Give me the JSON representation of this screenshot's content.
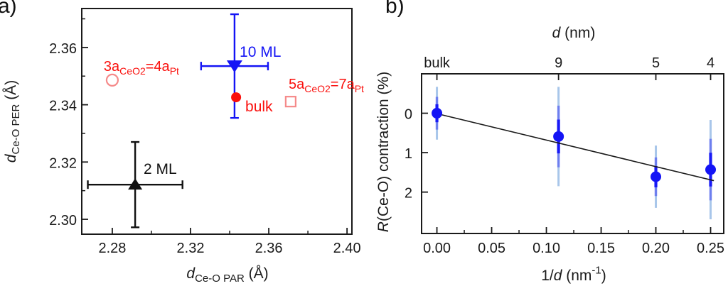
{
  "figure": {
    "background": "#ffffff",
    "panels": {
      "a": {
        "label": "a)"
      },
      "b": {
        "label": "b)"
      }
    }
  },
  "chart_data": [
    {
      "id": "a",
      "type": "scatter",
      "xlabel_rich": [
        {
          "t": "d",
          "i": true
        },
        {
          "t": "Ce-O PAR",
          "sub": true
        },
        {
          "t": " (Å)"
        }
      ],
      "ylabel_rich": [
        {
          "t": "d",
          "i": true
        },
        {
          "t": "Ce-O PER",
          "sub": true
        },
        {
          "t": " (Å)"
        }
      ],
      "xlim": [
        2.2644,
        2.4025
      ],
      "ylim": [
        2.2948,
        2.3736
      ],
      "y_inverted": false,
      "xticks": {
        "major": [
          2.28,
          2.32,
          2.36,
          2.4
        ],
        "labels": [
          "2.28",
          "2.32",
          "2.36",
          "2.40"
        ],
        "minor": [
          2.3,
          2.34,
          2.38
        ]
      },
      "yticks": {
        "major": [
          2.3,
          2.32,
          2.34,
          2.36
        ],
        "labels": [
          "2.30",
          "2.32",
          "2.34",
          "2.36"
        ],
        "minor": [
          2.31,
          2.33,
          2.35,
          2.37
        ]
      },
      "axis_color": "#1a1a1a",
      "series": [
        {
          "name": "3a-ceo2-4a-pt",
          "marker": "open-circle",
          "color": "#f58a8a",
          "x": 2.28,
          "y": 2.3486,
          "annotation": {
            "segments": [
              {
                "t": "3a"
              },
              {
                "t": "CeO2",
                "sub": true
              },
              {
                "t": "=4a"
              },
              {
                "t": "Pt",
                "sub": true
              }
            ],
            "color": "#fa100d",
            "x": 2.2949,
            "y": 2.3518,
            "anchor": "middle",
            "size": 20
          }
        },
        {
          "name": "10-ml",
          "marker": "triangle-down",
          "color": "#1414f5",
          "x": 2.3425,
          "y": 2.3535,
          "xerr": 0.0171,
          "yerr": 0.0181,
          "annotation": {
            "segments": [
              {
                "t": "10 ML"
              }
            ],
            "color": "#1414f5",
            "x": 2.3451,
            "y": 2.3568,
            "anchor": "start",
            "size": 21
          }
        },
        {
          "name": "bulk",
          "marker": "circle",
          "color": "#fa100d",
          "x": 2.3433,
          "y": 2.3426,
          "annotation": {
            "segments": [
              {
                "t": "bulk"
              }
            ],
            "color": "#fa100d",
            "x": 2.348,
            "y": 2.3377,
            "anchor": "start",
            "size": 21
          }
        },
        {
          "name": "5a-ceo2-7a-pt",
          "marker": "open-square",
          "color": "#f58a8a",
          "x": 2.3712,
          "y": 2.3411,
          "annotation": {
            "segments": [
              {
                "t": "5a"
              },
              {
                "t": "CeO2",
                "sub": true
              },
              {
                "t": "=7a"
              },
              {
                "t": "Pt",
                "sub": true
              }
            ],
            "color": "#fa100d",
            "x": 2.3894,
            "y": 2.3456,
            "anchor": "middle",
            "size": 20
          }
        },
        {
          "name": "2-ml",
          "marker": "triangle-up",
          "color": "#111111",
          "x": 2.2917,
          "y": 2.3121,
          "xerr": 0.0242,
          "yerr": 0.0149,
          "annotation": {
            "segments": [
              {
                "t": "2 ML"
              }
            ],
            "color": "#111111",
            "x": 2.296,
            "y": 2.3159,
            "anchor": "start",
            "size": 21
          }
        }
      ]
    },
    {
      "id": "b",
      "type": "scatter",
      "xlabel_rich": [
        {
          "t": "1/"
        },
        {
          "t": "d",
          "i": true
        },
        {
          "t": " (nm"
        },
        {
          "t": "-1",
          "sup": true
        },
        {
          "t": ")"
        }
      ],
      "ylabel_rich": [
        {
          "t": "R",
          "i": true
        },
        {
          "t": "(Ce-O) contraction (%)"
        }
      ],
      "top_axis_label_rich": [
        {
          "t": "d",
          "i": true
        },
        {
          "t": " (nm)"
        }
      ],
      "xlim": [
        -0.014,
        0.262
      ],
      "ylim": [
        -1.0,
        3.05
      ],
      "y_inverted": true,
      "xticks": {
        "major": [
          0.0,
          0.05,
          0.1,
          0.15,
          0.2,
          0.25
        ],
        "labels": [
          "0.00",
          "0.05",
          "0.10",
          "0.15",
          "0.20",
          "0.25"
        ],
        "minor": [
          0.025,
          0.075,
          0.125,
          0.175,
          0.225
        ]
      },
      "yticks": {
        "major": [
          0,
          1,
          2
        ],
        "labels": [
          "0",
          "1",
          "2"
        ],
        "minor": []
      },
      "top_ticks": {
        "values": [
          0.0,
          0.1111,
          0.2,
          0.25
        ],
        "labels": [
          "bulk",
          "9",
          "5",
          "4"
        ]
      },
      "axis_color": "#1a1a1a",
      "marker_color": "#1414f5",
      "err_light_color": "#a8c6ea",
      "points": [
        {
          "x": 0.0,
          "y": 0.0,
          "err": 0.67
        },
        {
          "x": 0.1111,
          "y": 0.59,
          "err": 1.26
        },
        {
          "x": 0.2,
          "y": 1.61,
          "err": 0.79
        },
        {
          "x": 0.25,
          "y": 1.43,
          "err": 1.26
        }
      ],
      "fit_line": {
        "x1": 0.003,
        "y1": 0.03,
        "x2": 0.253,
        "y2": 1.71,
        "color": "#1a1a1a"
      }
    }
  ]
}
